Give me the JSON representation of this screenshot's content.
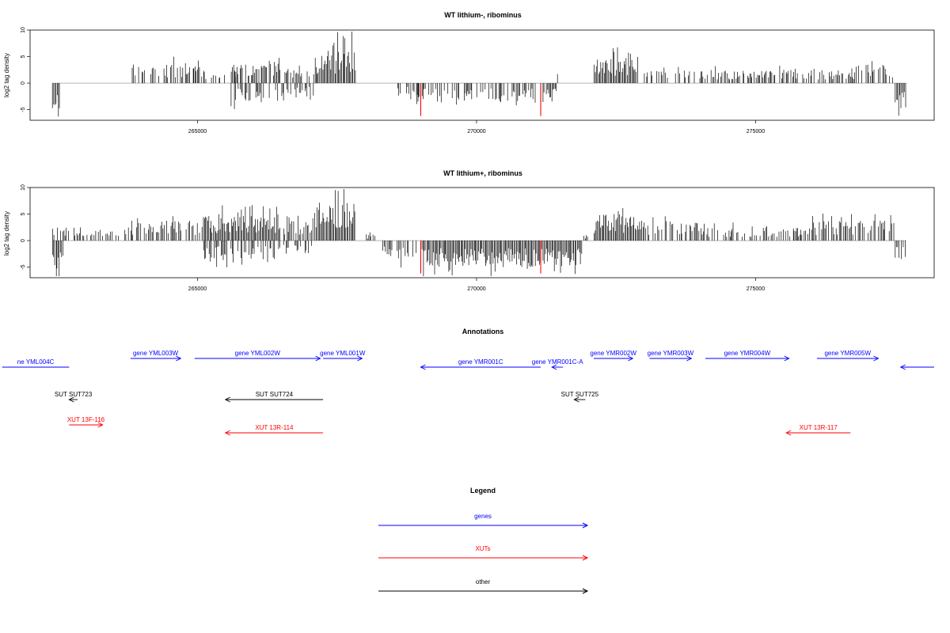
{
  "colors": {
    "gene": "#0000ff",
    "xut": "#ff0000",
    "other": "#000000",
    "highlight": "#ff0000",
    "bar": "#000000"
  },
  "chart_data": [
    {
      "type": "bar",
      "title": "WT lithium-, ribominus",
      "ylabel": "log2 tag density",
      "xlim": [
        262000,
        278200
      ],
      "ylim": [
        -7,
        10
      ],
      "yticks": [
        -5,
        0,
        5,
        10
      ],
      "xticks": [
        265000,
        270000,
        275000
      ],
      "xtick_labels": [
        "265000",
        "270000",
        "275000"
      ],
      "highlighted_positions": [
        269000,
        271150
      ],
      "density_profile": [
        {
          "from": 262400,
          "to": 262550,
          "value": -4
        },
        {
          "from": 263800,
          "to": 265100,
          "value": 3
        },
        {
          "from": 265100,
          "to": 265700,
          "value": 2
        },
        {
          "from": 265600,
          "to": 266500,
          "value": 3
        },
        {
          "from": 265600,
          "to": 266500,
          "value": -3
        },
        {
          "from": 266500,
          "to": 267100,
          "value": 2
        },
        {
          "from": 266500,
          "to": 267100,
          "value": -2
        },
        {
          "from": 267100,
          "to": 267500,
          "value": 5
        },
        {
          "from": 267500,
          "to": 267850,
          "value": 6
        },
        {
          "from": 268400,
          "to": 268450,
          "value": 2
        },
        {
          "from": 268500,
          "to": 269000,
          "value": -2
        },
        {
          "from": 268900,
          "to": 271450,
          "value": -3
        },
        {
          "from": 271450,
          "to": 271500,
          "value": 2
        },
        {
          "from": 272100,
          "to": 272900,
          "value": 4
        },
        {
          "from": 273000,
          "to": 275900,
          "value": 2
        },
        {
          "from": 275900,
          "to": 276800,
          "value": 2
        },
        {
          "from": 276800,
          "to": 277500,
          "value": 3
        },
        {
          "from": 277500,
          "to": 277700,
          "value": -4
        }
      ]
    },
    {
      "type": "bar",
      "title": "WT lithium+, ribominus",
      "ylabel": "log2 tag density",
      "xlim": [
        262000,
        278200
      ],
      "ylim": [
        -7,
        10
      ],
      "yticks": [
        -5,
        0,
        5,
        10
      ],
      "xticks": [
        265000,
        270000,
        275000
      ],
      "xtick_labels": [
        "265000",
        "270000",
        "275000"
      ],
      "highlighted_positions": [
        269000,
        271150
      ],
      "density_profile": [
        {
          "from": 262400,
          "to": 262600,
          "value": -5
        },
        {
          "from": 262400,
          "to": 263800,
          "value": 2
        },
        {
          "from": 263800,
          "to": 265100,
          "value": 3
        },
        {
          "from": 265100,
          "to": 266500,
          "value": 4
        },
        {
          "from": 265100,
          "to": 266500,
          "value": -3
        },
        {
          "from": 266500,
          "to": 267100,
          "value": 3
        },
        {
          "from": 266500,
          "to": 267100,
          "value": -2
        },
        {
          "from": 267100,
          "to": 267850,
          "value": 6
        },
        {
          "from": 268000,
          "to": 268200,
          "value": 1
        },
        {
          "from": 268300,
          "to": 269000,
          "value": -3
        },
        {
          "from": 269000,
          "to": 271900,
          "value": -4
        },
        {
          "from": 271900,
          "to": 272000,
          "value": 1
        },
        {
          "from": 272100,
          "to": 273000,
          "value": 4
        },
        {
          "from": 273000,
          "to": 274000,
          "value": 3
        },
        {
          "from": 274000,
          "to": 276000,
          "value": 2
        },
        {
          "from": 276000,
          "to": 277500,
          "value": 3
        },
        {
          "from": 277500,
          "to": 277700,
          "value": -3
        }
      ]
    }
  ],
  "annotations": {
    "title": "Annotations",
    "items": [
      {
        "label": "ne YML004C",
        "kind": "gene",
        "start": 261500,
        "end": 262700,
        "arrow": "none",
        "row": 0
      },
      {
        "label": "gene YML003W",
        "kind": "gene",
        "start": 263800,
        "end": 264700,
        "arrow": "right",
        "row": 1
      },
      {
        "label": "gene YML002W",
        "kind": "gene",
        "start": 264950,
        "end": 267200,
        "arrow": "right",
        "row": 1
      },
      {
        "label": "gene YML001W",
        "kind": "gene",
        "start": 267250,
        "end": 267950,
        "arrow": "right",
        "row": 1
      },
      {
        "label": "gene YMR001C",
        "kind": "gene",
        "start": 269000,
        "end": 271150,
        "arrow": "left",
        "row": 0
      },
      {
        "label": "gene YMR001C-A",
        "kind": "gene",
        "start": 271350,
        "end": 271550,
        "arrow": "left",
        "row": 0
      },
      {
        "label": "gene YMR002W",
        "kind": "gene",
        "start": 272100,
        "end": 272800,
        "arrow": "right",
        "row": 1
      },
      {
        "label": "gene YMR003W",
        "kind": "gene",
        "start": 273100,
        "end": 273850,
        "arrow": "right",
        "row": 1
      },
      {
        "label": "gene YMR004W",
        "kind": "gene",
        "start": 274100,
        "end": 275600,
        "arrow": "right",
        "row": 1
      },
      {
        "label": "gene YMR005W",
        "kind": "gene",
        "start": 276100,
        "end": 277200,
        "arrow": "right",
        "row": 1
      },
      {
        "label": "",
        "kind": "gene",
        "start": 277600,
        "end": 278200,
        "arrow": "left",
        "row": 0
      },
      {
        "label": "SUT SUT723",
        "kind": "other",
        "start": 262700,
        "end": 262850,
        "arrow": "left",
        "row": 2
      },
      {
        "label": "SUT SUT724",
        "kind": "other",
        "start": 265500,
        "end": 267250,
        "arrow": "left",
        "row": 2
      },
      {
        "label": "SUT SUT725",
        "kind": "other",
        "start": 271750,
        "end": 271950,
        "arrow": "left",
        "row": 2
      },
      {
        "label": "XUT 13F-116",
        "kind": "xut",
        "start": 262700,
        "end": 263300,
        "arrow": "right",
        "row": 3
      },
      {
        "label": "XUT 13R-114",
        "kind": "xut",
        "start": 265500,
        "end": 267250,
        "arrow": "left",
        "row": 4
      },
      {
        "label": "XUT 13R-117",
        "kind": "xut",
        "start": 275550,
        "end": 276700,
        "arrow": "left",
        "row": 4
      }
    ]
  },
  "legend": {
    "title": "Legend",
    "items": [
      {
        "label": "genes",
        "kind": "gene"
      },
      {
        "label": "XUTs",
        "kind": "xut"
      },
      {
        "label": "other",
        "kind": "other"
      }
    ]
  }
}
